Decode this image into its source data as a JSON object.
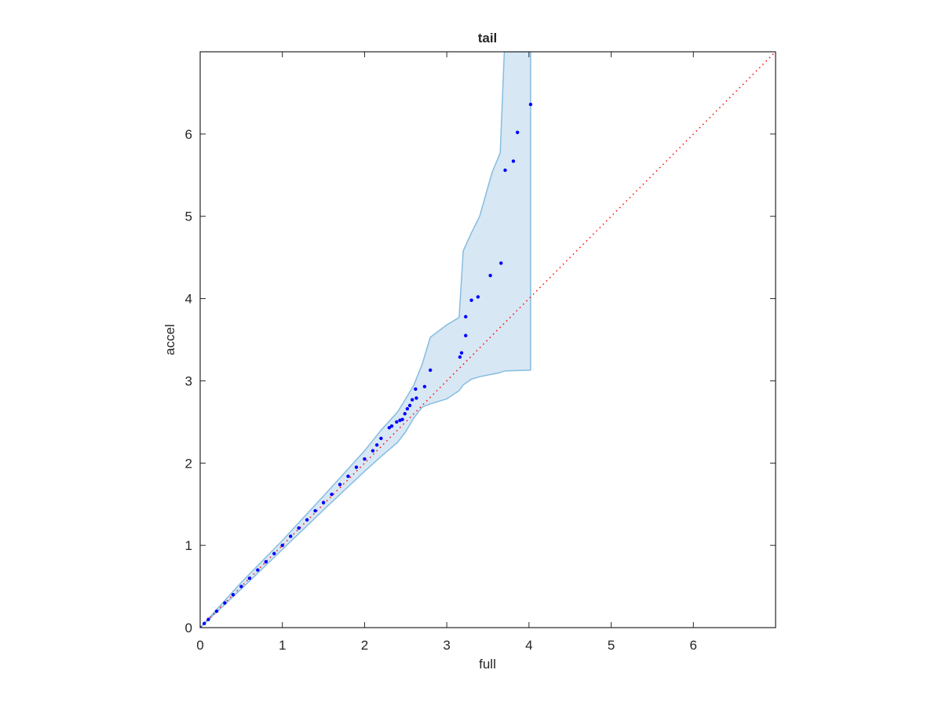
{
  "chart_data": {
    "type": "scatter",
    "title": "tail",
    "xlabel": "full",
    "ylabel": "accel",
    "xlim": [
      0,
      7
    ],
    "ylim": [
      0,
      7
    ],
    "xticks": [
      0,
      1,
      2,
      3,
      4,
      5,
      6
    ],
    "yticks": [
      0,
      1,
      2,
      3,
      4,
      5,
      6
    ],
    "grid": false,
    "series": [
      {
        "kind": "band",
        "color": "#d7e7f4",
        "edge_color": "#86bde0",
        "x": [
          0,
          0.5,
          1,
          1.5,
          2,
          2.2,
          2.4,
          2.5,
          2.6,
          2.7,
          2.8,
          3.0,
          3.15,
          3.2,
          3.3,
          3.4,
          3.55,
          3.65,
          3.7,
          4.02
        ],
        "upper": [
          0,
          0.55,
          1.06,
          1.6,
          2.15,
          2.4,
          2.62,
          2.78,
          2.95,
          3.2,
          3.53,
          3.68,
          3.77,
          4.58,
          4.8,
          5.0,
          5.53,
          5.77,
          7,
          7
        ],
        "lower": [
          0,
          0.47,
          0.95,
          1.43,
          1.9,
          2.08,
          2.25,
          2.38,
          2.55,
          2.68,
          2.72,
          2.78,
          2.88,
          2.95,
          3.02,
          3.05,
          3.08,
          3.1,
          3.12,
          3.13
        ]
      },
      {
        "kind": "line",
        "color": "#ff0000",
        "x": [
          0,
          7
        ],
        "values": [
          0,
          7
        ]
      },
      {
        "kind": "points",
        "color": "#0000ff",
        "x": [
          0,
          0.05,
          0.1,
          0.2,
          0.3,
          0.4,
          0.5,
          0.6,
          0.7,
          0.8,
          0.9,
          1.0,
          1.1,
          1.2,
          1.3,
          1.4,
          1.5,
          1.6,
          1.7,
          1.8,
          1.9,
          2.0,
          2.1,
          2.15,
          2.2,
          2.3,
          2.33,
          2.39,
          2.43,
          2.46,
          2.49,
          2.52,
          2.55,
          2.58,
          2.63,
          2.62,
          2.73,
          2.8,
          3.16,
          3.18,
          3.23,
          3.23,
          3.3,
          3.38,
          3.53,
          3.66,
          3.71,
          3.81,
          3.86,
          4.02
        ],
        "values": [
          0,
          0.05,
          0.1,
          0.2,
          0.3,
          0.4,
          0.5,
          0.6,
          0.7,
          0.8,
          0.9,
          1.0,
          1.11,
          1.21,
          1.31,
          1.42,
          1.52,
          1.62,
          1.74,
          1.84,
          1.95,
          2.05,
          2.15,
          2.22,
          2.3,
          2.43,
          2.45,
          2.5,
          2.52,
          2.53,
          2.6,
          2.66,
          2.7,
          2.77,
          2.79,
          2.9,
          2.93,
          3.13,
          3.29,
          3.34,
          3.55,
          3.78,
          3.98,
          4.02,
          4.28,
          4.43,
          5.56,
          5.67,
          6.02,
          6.36
        ]
      }
    ]
  }
}
